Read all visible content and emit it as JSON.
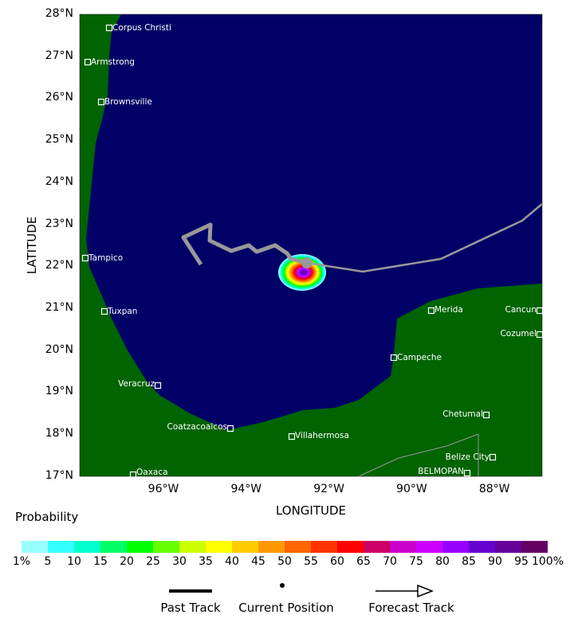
{
  "axes": {
    "xlabel": "LONGITUDE",
    "ylabel": "LATITUDE",
    "lat_ticks": [
      "28°N",
      "27°N",
      "26°N",
      "25°N",
      "24°N",
      "23°N",
      "22°N",
      "21°N",
      "20°N",
      "19°N",
      "18°N",
      "17°N"
    ],
    "lon_ticks": [
      "96°W",
      "94°W",
      "92°W",
      "90°W",
      "88°W"
    ]
  },
  "cities": [
    "Corpus Christi",
    "Armstrong",
    "Brownsville",
    "Tampico",
    "Tuxpan",
    "Veracruz",
    "Coatzacoalcos",
    "Villahermosa",
    "Oaxaca",
    "Campeche",
    "Merida",
    "Cancun",
    "Cozumel",
    "Chetumal",
    "Belize City",
    "BELMOPAN"
  ],
  "legend": {
    "title": "Probability",
    "ticks": [
      "1%",
      "5",
      "10",
      "15",
      "20",
      "25",
      "30",
      "35",
      "40",
      "45",
      "50",
      "55",
      "60",
      "65",
      "70",
      "75",
      "80",
      "85",
      "90",
      "95",
      "100%"
    ],
    "colors": [
      "#99ffff",
      "#33ffff",
      "#00ffcc",
      "#00ff66",
      "#00ff00",
      "#66ff00",
      "#ccff00",
      "#ffff00",
      "#ffcc00",
      "#ff9900",
      "#ff6600",
      "#ff3300",
      "#ff0000",
      "#cc0066",
      "#cc00cc",
      "#cc00ff",
      "#9900ff",
      "#6600cc",
      "#660099",
      "#660066"
    ],
    "past_track": "Past Track",
    "current_position": "Current Position",
    "forecast_track": "Forecast Track"
  },
  "colors": {
    "ocean": "#000066",
    "land": "#006400",
    "track": "#999999"
  }
}
